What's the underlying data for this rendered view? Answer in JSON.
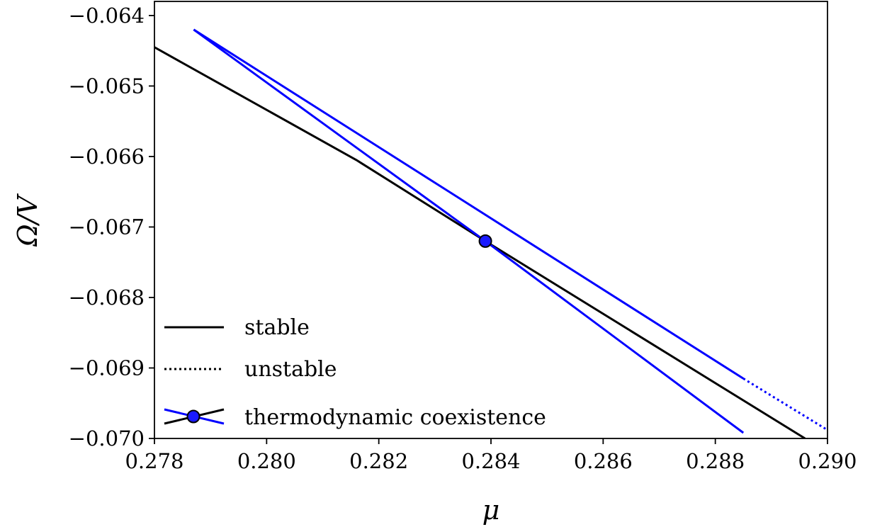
{
  "chart_data": {
    "type": "line",
    "xlabel": "μ",
    "ylabel": "Ω/V",
    "xlim": [
      0.278,
      0.29
    ],
    "ylim": [
      -0.07,
      -0.0638
    ],
    "x_ticks": [
      0.278,
      0.28,
      0.282,
      0.284,
      0.286,
      0.288,
      0.29
    ],
    "x_tick_labels": [
      "0.278",
      "0.280",
      "0.282",
      "0.284",
      "0.286",
      "0.288",
      "0.290"
    ],
    "y_ticks": [
      -0.064,
      -0.065,
      -0.066,
      -0.067,
      -0.068,
      -0.069,
      -0.07
    ],
    "y_tick_labels": [
      "−0.064",
      "−0.065",
      "−0.066",
      "−0.067",
      "−0.068",
      "−0.069",
      "−0.070"
    ],
    "grid": false,
    "legend_position": "lower-left",
    "legend": [
      {
        "label": "stable",
        "style": "solid",
        "color": "#000000"
      },
      {
        "label": "unstable",
        "style": "dotted",
        "color": "#000000"
      },
      {
        "label": "thermodynamic coexistence",
        "style": "crossed-with-marker",
        "color": "#0000ff"
      }
    ],
    "series": [
      {
        "color": "#000000",
        "style": "solid",
        "x": [
          0.278,
          0.2816,
          0.2839,
          0.2896
        ],
        "y": [
          -0.06445,
          -0.06605,
          -0.0672,
          -0.07
        ]
      },
      {
        "color": "#0000ff",
        "style": "solid",
        "x": [
          0.2787,
          0.2839,
          0.2885
        ],
        "y": [
          -0.0642,
          -0.0672,
          -0.06992
        ]
      },
      {
        "color": "#0000ff",
        "style": "solid",
        "x": [
          0.2787,
          0.2885
        ],
        "y": [
          -0.0642,
          -0.06915
        ]
      },
      {
        "color": "#0000ff",
        "style": "dotted",
        "x": [
          0.2885,
          0.29
        ],
        "y": [
          -0.06915,
          -0.06988
        ]
      }
    ],
    "coexistence_point": {
      "x": 0.2839,
      "y": -0.0672,
      "color": "#0000ff"
    }
  }
}
